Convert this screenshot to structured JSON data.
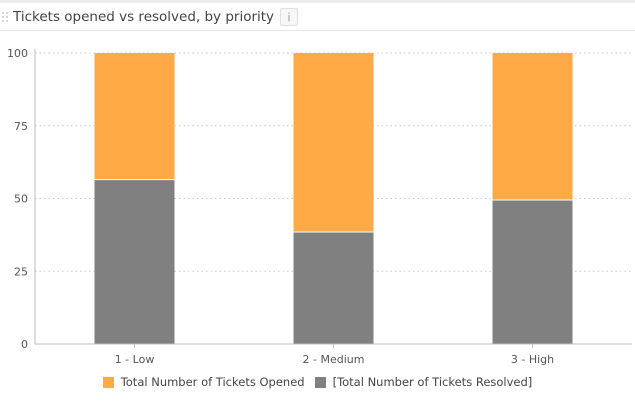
{
  "header": {
    "title": "Tickets opened vs resolved, by priority",
    "drag_icon": "drag-handle-icon",
    "info_icon": "info-icon"
  },
  "colors": {
    "opened": "#FFAA46",
    "resolved": "#808080",
    "grid": "#c8c8c8",
    "axis": "#bdbdbd"
  },
  "chart_data": {
    "type": "bar",
    "stacked": true,
    "categories": [
      "1 - Low",
      "2 - Medium",
      "3 - High"
    ],
    "series": [
      {
        "name": "[Total Number of Tickets Resolved]",
        "values": [
          56.5,
          38.5,
          49.5
        ]
      },
      {
        "name": "Total Number of Tickets Opened",
        "values": [
          43.5,
          61.5,
          50.5
        ]
      }
    ],
    "ylim": [
      0,
      100
    ],
    "yticks": [
      "0",
      "25",
      "50",
      "75",
      "100"
    ],
    "grid": true,
    "legend_position": "bottom"
  },
  "legend": {
    "items": [
      {
        "label": "Total Number of Tickets Opened",
        "series": "opened"
      },
      {
        "label": "[Total Number of Tickets Resolved]",
        "series": "resolved"
      }
    ]
  }
}
